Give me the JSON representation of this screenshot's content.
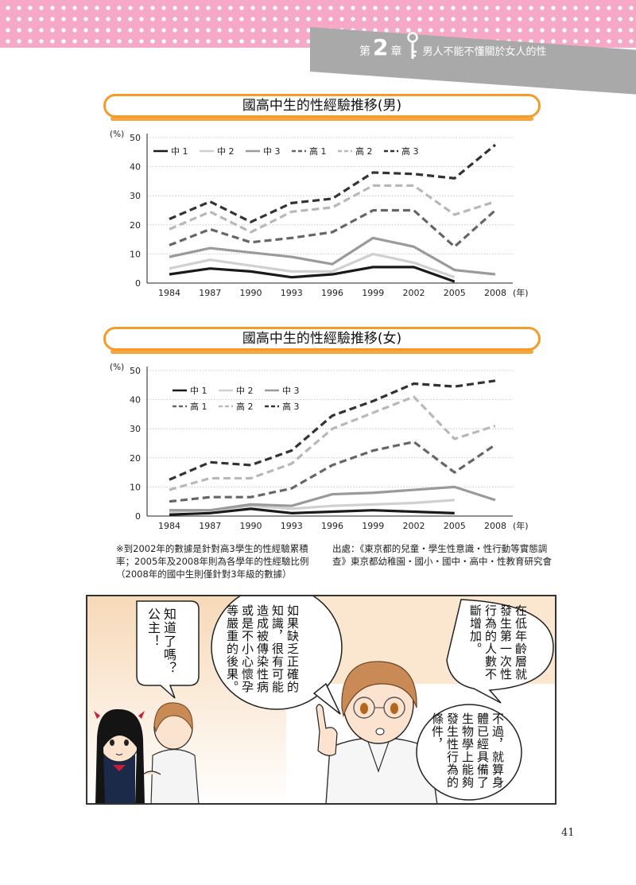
{
  "header": {
    "chapter_prefix": "第",
    "chapter_number": "2",
    "chapter_suffix": "章",
    "chapter_title": "男人不能不懂關於女人的性"
  },
  "charts_titles": {
    "male": "國高中生的性經驗推移(男)",
    "female": "國高中生的性經驗推移(女)"
  },
  "chart_data": [
    {
      "type": "line",
      "title": "國高中生的性經驗推移(男)",
      "ylabel": "(%)",
      "xlabel": "(年)",
      "ylim": [
        0,
        50
      ],
      "yticks": [
        "0",
        "10",
        "20",
        "30",
        "40",
        "50"
      ],
      "x": [
        "1984",
        "1987",
        "1990",
        "1993",
        "1996",
        "1999",
        "2002",
        "2005",
        "2008"
      ],
      "legend_position": "top-left",
      "grid": true,
      "series": [
        {
          "name": "中 1",
          "style": "solid",
          "color": "#1a1a1a",
          "values": [
            3,
            5,
            4,
            2,
            3,
            5.5,
            5.5,
            0.5,
            null
          ]
        },
        {
          "name": "中 2",
          "style": "solid",
          "color": "#d0d0d0",
          "values": [
            5,
            8,
            6,
            4,
            4,
            10,
            7,
            2,
            null
          ]
        },
        {
          "name": "中 3",
          "style": "solid",
          "color": "#9a9a9a",
          "values": [
            9,
            12,
            10.5,
            9,
            6.5,
            15.5,
            12.5,
            4.5,
            3
          ]
        },
        {
          "name": "高 1",
          "style": "dashed",
          "color": "#666666",
          "values": [
            13,
            18.5,
            14,
            15.5,
            17.5,
            25,
            25,
            12.5,
            25
          ]
        },
        {
          "name": "高 2",
          "style": "dashed",
          "color": "#b8b8b8",
          "values": [
            18.5,
            24.5,
            17.5,
            24.5,
            26,
            33.5,
            33.5,
            23.5,
            28
          ]
        },
        {
          "name": "高 3",
          "style": "dashed",
          "color": "#333333",
          "values": [
            22,
            28,
            21,
            27.5,
            29,
            38,
            37.5,
            36,
            47.5
          ]
        }
      ]
    },
    {
      "type": "line",
      "title": "國高中生的性經驗推移(女)",
      "ylabel": "(%)",
      "xlabel": "(年)",
      "ylim": [
        0,
        50
      ],
      "yticks": [
        "0",
        "10",
        "20",
        "30",
        "40",
        "50"
      ],
      "x": [
        "1984",
        "1987",
        "1990",
        "1993",
        "1996",
        "1999",
        "2002",
        "2005",
        "2008"
      ],
      "legend_position": "top-left",
      "grid": true,
      "series": [
        {
          "name": "中 1",
          "style": "solid",
          "color": "#1a1a1a",
          "values": [
            0.5,
            1,
            2.5,
            1,
            1.5,
            2,
            1.5,
            1,
            null
          ]
        },
        {
          "name": "中 2",
          "style": "solid",
          "color": "#d0d0d0",
          "values": [
            1.5,
            2,
            3.5,
            2.5,
            3.5,
            4,
            4.5,
            5.5,
            null
          ]
        },
        {
          "name": "中 3",
          "style": "solid",
          "color": "#9a9a9a",
          "values": [
            2,
            2,
            4,
            3.5,
            7.5,
            8,
            9,
            10,
            5.5
          ]
        },
        {
          "name": "高 1",
          "style": "dashed",
          "color": "#666666",
          "values": [
            5,
            6.5,
            6.5,
            9.5,
            17.5,
            22.5,
            25.5,
            15,
            24.5
          ]
        },
        {
          "name": "高 2",
          "style": "dashed",
          "color": "#b8b8b8",
          "values": [
            9,
            13,
            13,
            18,
            30,
            35.5,
            41,
            26.5,
            31
          ]
        },
        {
          "name": "高 3",
          "style": "dashed",
          "color": "#333333",
          "values": [
            12.5,
            18.5,
            17.5,
            22.5,
            34.5,
            39.5,
            45.5,
            44.5,
            46.5
          ]
        }
      ]
    }
  ],
  "notes": {
    "left": "※到2002年的數據是針對高3學生的性經驗累積率；2005年及2008年則為各學年的性經驗比例（2008年的國中生則僅針對3年級的數據）",
    "right": "出處：《東京都的兒童・學生性意識・性行動等實態調查》東京都幼稚園・國小・國中・高中・性教育研究會"
  },
  "manga": {
    "bubble_left": "知道了嗎？公主！",
    "bubble_middle": "如果缺乏正確的知識，很有可能造成被傳染性病或是不小心懷孕等嚴重的後果。",
    "bubble_right_top": "在低年齡層就發生第一次性行為的人數不斷增加。",
    "bubble_right_bottom": "不過，就算身體已經具備了生物學上能夠發生性行為的條件，"
  },
  "page_number": "41",
  "colors": {
    "accent_orange": "#f59b2a",
    "header_pink": "#f6a9c6",
    "chapter_gray": "#a9a9a9"
  }
}
